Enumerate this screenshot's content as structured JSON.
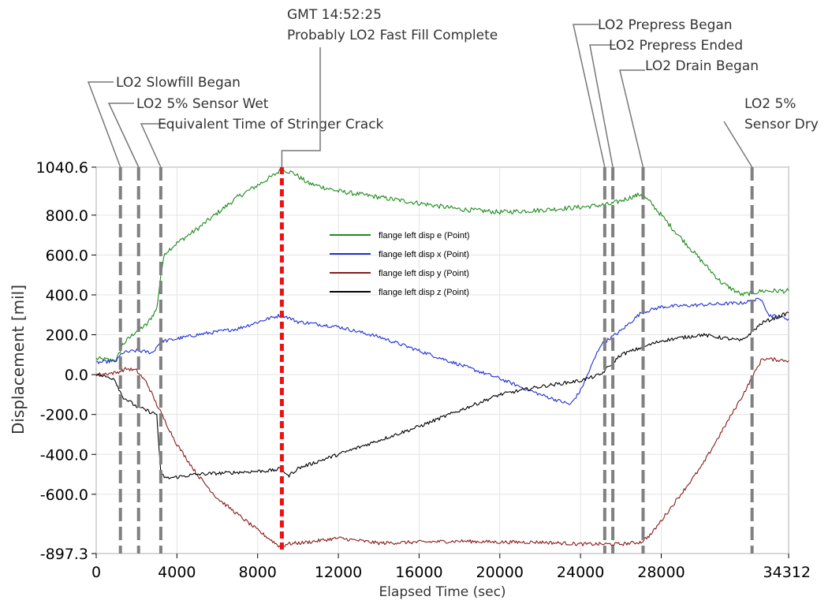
{
  "chart_data": {
    "type": "line",
    "title": "",
    "xlabel": "Elapsed Time (sec)",
    "ylabel": "Displacement [mil]",
    "xlim": [
      0,
      34312
    ],
    "ylim": [
      -897.3,
      1040.6
    ],
    "grid": true,
    "legend_position": "top-center",
    "x_tick_labels": [
      "0",
      "4000",
      "8000",
      "12000",
      "16000",
      "20000",
      "24000",
      "28000",
      "34312"
    ],
    "x_ticks": [
      0,
      4000,
      8000,
      12000,
      16000,
      20000,
      24000,
      28000,
      34312
    ],
    "y_tick_labels": [
      "1040.6",
      "800.0",
      "600.0",
      "400.0",
      "200.0",
      "0.0",
      "-200.0",
      "-400.0",
      "-600.0",
      "-897.3"
    ],
    "y_ticks": [
      1040.6,
      800,
      600,
      400,
      200,
      0,
      -200,
      -400,
      -600,
      -897.3
    ],
    "series": [
      {
        "name": "flange left disp e (Point)",
        "color": "#1e8c1e",
        "noise": 12,
        "x": [
          0,
          1000,
          1300,
          2000,
          2500,
          3000,
          3200,
          3400,
          4000,
          5000,
          6000,
          7000,
          8000,
          8800,
          9200,
          9800,
          10500,
          12000,
          14000,
          16000,
          18000,
          20000,
          22000,
          24000,
          25500,
          26500,
          27000,
          27500,
          28500,
          30000,
          31000,
          32000,
          33000,
          34312
        ],
        "y": [
          80,
          70,
          150,
          220,
          250,
          330,
          500,
          610,
          660,
          730,
          810,
          890,
          950,
          1000,
          1030,
          1010,
          960,
          920,
          890,
          860,
          830,
          815,
          825,
          840,
          855,
          890,
          905,
          860,
          740,
          570,
          460,
          400,
          420,
          420
        ]
      },
      {
        "name": "flange left disp x (Point)",
        "color": "#1f2fd6",
        "noise": 9,
        "x": [
          0,
          1000,
          1300,
          2000,
          2800,
          3200,
          3500,
          5000,
          7000,
          8500,
          9200,
          10000,
          12000,
          14000,
          16000,
          18000,
          20000,
          22000,
          23500,
          24000,
          25000,
          26000,
          27000,
          28000,
          30000,
          32000,
          33000,
          33300,
          34312
        ],
        "y": [
          60,
          70,
          110,
          120,
          110,
          170,
          170,
          200,
          230,
          280,
          300,
          265,
          240,
          190,
          120,
          50,
          -20,
          -100,
          -150,
          -80,
          150,
          220,
          310,
          340,
          350,
          360,
          380,
          300,
          280
        ]
      },
      {
        "name": "flange left disp y (Point)",
        "color": "#8b1a1a",
        "noise": 9,
        "x": [
          0,
          1000,
          1500,
          2000,
          2500,
          3000,
          4000,
          5000,
          6000,
          7000,
          8000,
          8800,
          9200,
          9400,
          10500,
          12000,
          14000,
          16000,
          18000,
          20000,
          22000,
          24000,
          26000,
          27000,
          27500,
          30000,
          32000,
          33000,
          34312
        ],
        "y": [
          0,
          10,
          30,
          20,
          -40,
          -150,
          -350,
          -500,
          -620,
          -700,
          -780,
          -840,
          -870,
          -850,
          -840,
          -820,
          -845,
          -840,
          -835,
          -840,
          -840,
          -850,
          -850,
          -840,
          -800,
          -460,
          -110,
          80,
          70
        ]
      },
      {
        "name": "flange left disp z (Point)",
        "color": "#000000",
        "noise": 9,
        "x": [
          0,
          900,
          1300,
          2000,
          3000,
          3200,
          3500,
          5000,
          7000,
          8800,
          9200,
          9500,
          10000,
          12000,
          14000,
          16000,
          18000,
          20000,
          22000,
          24000,
          25000,
          26000,
          28000,
          30000,
          32000,
          33000,
          34312
        ],
        "y": [
          0,
          -20,
          -110,
          -160,
          -200,
          -500,
          -520,
          -500,
          -490,
          -480,
          -470,
          -510,
          -470,
          -400,
          -330,
          -260,
          -180,
          -100,
          -60,
          -30,
          0,
          100,
          170,
          200,
          170,
          260,
          310
        ]
      }
    ],
    "events": [
      {
        "x": 1200,
        "label": "LO2 Slowfill Began",
        "style": "gray"
      },
      {
        "x": 2100,
        "label": "LO2 5% Sensor Wet",
        "style": "gray"
      },
      {
        "x": 3200,
        "label": "Equivalent Time of Stringer Crack",
        "style": "gray"
      },
      {
        "x": 9200,
        "label": "GMT 14:52:25\nProbably LO2 Fast Fill Complete",
        "style": "red"
      },
      {
        "x": 25200,
        "label": "LO2 Prepress Began",
        "style": "gray"
      },
      {
        "x": 25600,
        "label": "LO2 Prepress Ended",
        "style": "gray"
      },
      {
        "x": 27100,
        "label": "LO2 Drain Began",
        "style": "gray"
      },
      {
        "x": 32500,
        "label": "LO2 5%\nSensor Dry",
        "style": "gray"
      }
    ]
  }
}
